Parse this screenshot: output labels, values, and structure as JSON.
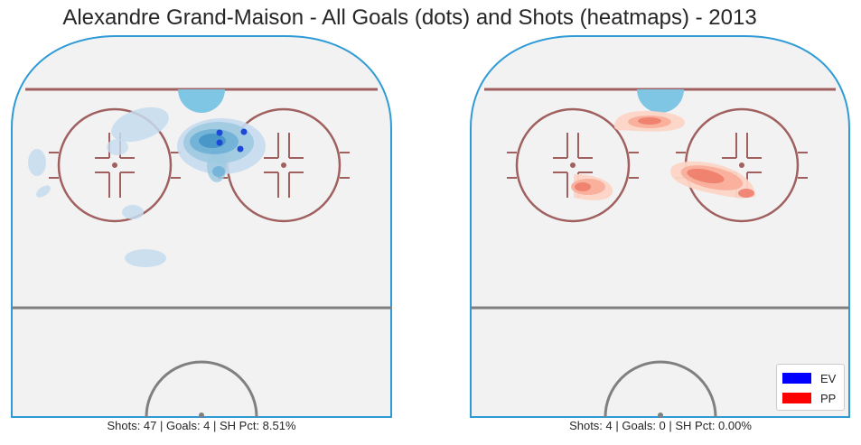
{
  "chart_data": [
    {
      "type": "heatmap",
      "title": "Alexandre Grand-Maison - All Goals (dots) and Shots (heatmaps) - 2013",
      "caption": "Shots: 47 | Goals: 4 | SH Pct: 8.51%",
      "strength": "EV",
      "shots": 47,
      "goals": 4,
      "sh_pct": "8.51%",
      "color": "#1f77b4",
      "goal_color": "#0033cc"
    },
    {
      "type": "heatmap",
      "caption": "Shots: 4 | Goals: 0 | SH Pct: 0.00%",
      "strength": "PP",
      "shots": 4,
      "goals": 0,
      "sh_pct": "0.00%",
      "color": "#d62728"
    }
  ],
  "legend": {
    "placement": "lower-right",
    "entries": [
      {
        "label": "EV",
        "color": "#0000ff"
      },
      {
        "label": "PP",
        "color": "#ff0000"
      }
    ]
  }
}
